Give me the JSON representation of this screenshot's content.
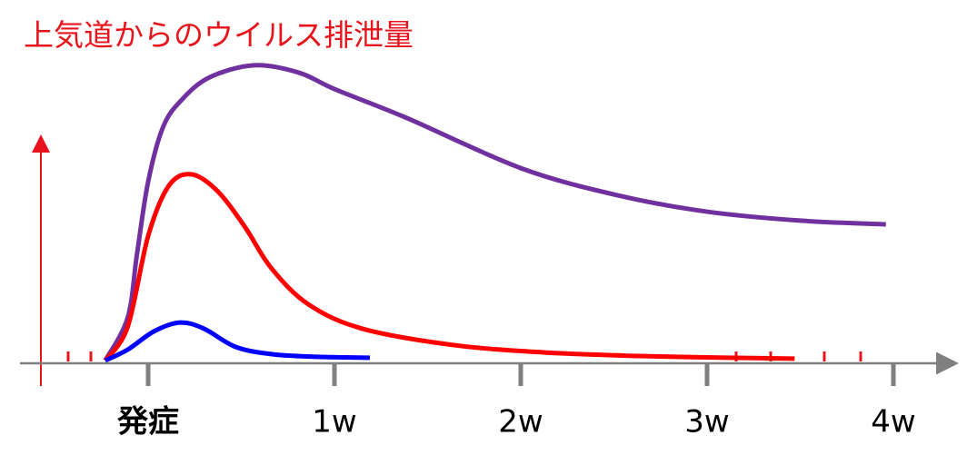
{
  "chart_data": {
    "type": "line",
    "title": "上気道からのウイルス排泄量",
    "xlim": [
      -0.6,
      4.3
    ],
    "ylim": [
      0,
      100
    ],
    "xticks": [
      {
        "value": 0,
        "label": "発症"
      },
      {
        "value": 1,
        "label": "1w"
      },
      {
        "value": 2,
        "label": "2w"
      },
      {
        "value": 3,
        "label": "3w"
      },
      {
        "value": 4,
        "label": "4w"
      }
    ],
    "series": [
      {
        "color": "#7030a0",
        "x": [
          -0.23,
          -0.11,
          -0.06,
          0,
          0.08,
          0.18,
          0.33,
          0.57,
          0.81,
          1,
          1.39,
          2,
          2.52,
          3,
          3.5,
          3.96
        ],
        "values": [
          0.9,
          14.7,
          35.3,
          58.8,
          76.5,
          85.3,
          92.6,
          96.5,
          94.1,
          88.8,
          79.4,
          63.2,
          54.4,
          49.1,
          46.2,
          45.0
        ]
      },
      {
        "color": "#ff0000",
        "x": [
          -0.23,
          -0.11,
          0,
          0.11,
          0.23,
          0.37,
          0.52,
          0.66,
          0.86,
          1.15,
          1.64,
          2.13,
          2.61,
          3.11,
          3.47
        ],
        "values": [
          0.9,
          11.8,
          41.2,
          57.4,
          61.2,
          55.9,
          44.1,
          30.9,
          19.1,
          11.2,
          5.9,
          3.5,
          2.4,
          1.8,
          1.5
        ]
      },
      {
        "color": "#0000ff",
        "x": [
          -0.23,
          -0.11,
          0.03,
          0.17,
          0.3,
          0.47,
          0.67,
          0.91,
          1.19
        ],
        "values": [
          0.9,
          4.4,
          10.3,
          13.2,
          11.2,
          5.3,
          2.9,
          2.1,
          1.8
        ]
      }
    ]
  }
}
